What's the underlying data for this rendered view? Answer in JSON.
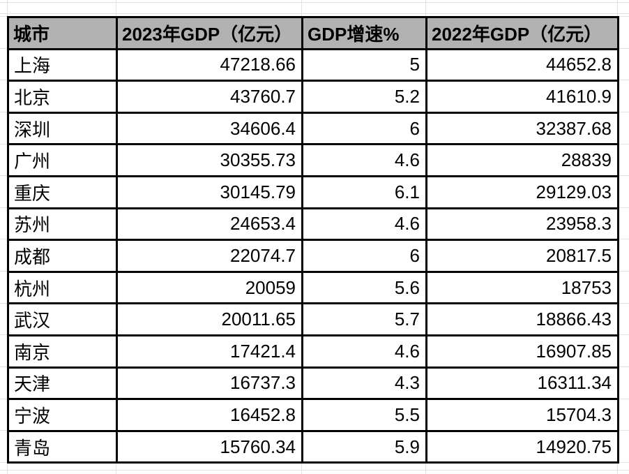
{
  "table": {
    "headers": {
      "city": "城市",
      "gdp2023": "2023年GDP（亿元）",
      "growth": "GDP增速%",
      "gdp2022": "2022年GDP（亿元）"
    },
    "rows": [
      {
        "city": "上海",
        "gdp2023": "47218.66",
        "growth": "5",
        "gdp2022": "44652.8"
      },
      {
        "city": "北京",
        "gdp2023": "43760.7",
        "growth": "5.2",
        "gdp2022": "41610.9"
      },
      {
        "city": "深圳",
        "gdp2023": "34606.4",
        "growth": "6",
        "gdp2022": "32387.68"
      },
      {
        "city": "广州",
        "gdp2023": "30355.73",
        "growth": "4.6",
        "gdp2022": "28839"
      },
      {
        "city": "重庆",
        "gdp2023": "30145.79",
        "growth": "6.1",
        "gdp2022": "29129.03"
      },
      {
        "city": "苏州",
        "gdp2023": "24653.4",
        "growth": "4.6",
        "gdp2022": "23958.3"
      },
      {
        "city": "成都",
        "gdp2023": "22074.7",
        "growth": "6",
        "gdp2022": "20817.5"
      },
      {
        "city": "杭州",
        "gdp2023": "20059",
        "growth": "5.6",
        "gdp2022": "18753"
      },
      {
        "city": "武汉",
        "gdp2023": "20011.65",
        "growth": "5.7",
        "gdp2022": "18866.43"
      },
      {
        "city": "南京",
        "gdp2023": "17421.4",
        "growth": "4.6",
        "gdp2022": "16907.85"
      },
      {
        "city": "天津",
        "gdp2023": "16737.3",
        "growth": "4.3",
        "gdp2022": "16311.34"
      },
      {
        "city": "宁波",
        "gdp2023": "16452.8",
        "growth": "5.5",
        "gdp2022": "15704.3"
      },
      {
        "city": "青岛",
        "gdp2023": "15760.34",
        "growth": "5.9",
        "gdp2022": "14920.75"
      }
    ]
  },
  "colors": {
    "header_background": "#b2b2b2",
    "table_border": "#000000",
    "gridline": "#e2e2e2",
    "text": "#000000",
    "page_background": "#ffffff"
  }
}
